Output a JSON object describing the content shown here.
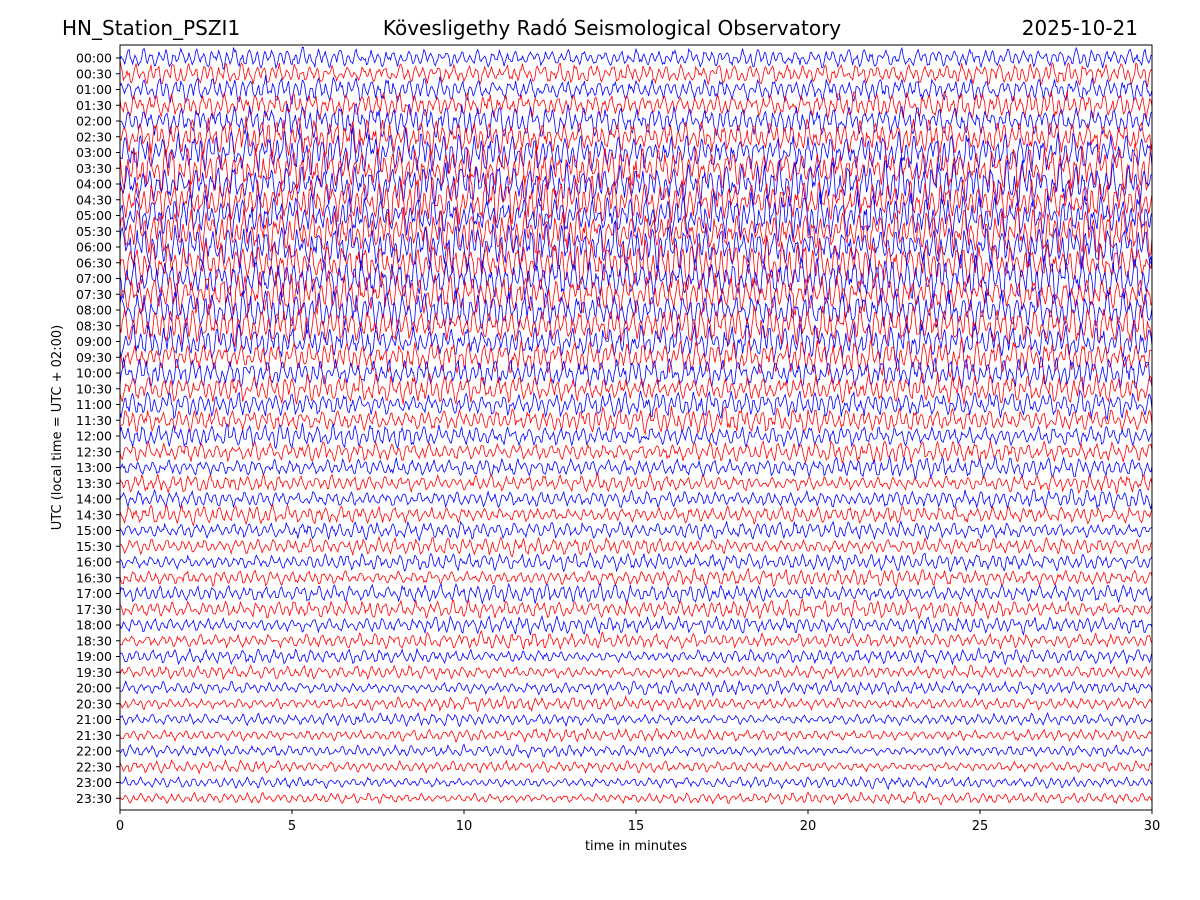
{
  "header": {
    "station": "HN_Station_PSZI1",
    "observatory": "Kövesligethy Radó Seismological Observatory",
    "date": "2025-10-21"
  },
  "colors": {
    "trace_a": "#0000ff",
    "trace_b": "#ff0000",
    "frame": "#000000",
    "background": "#ffffff"
  },
  "chart_data": {
    "type": "line",
    "title": "Kövesligethy Radó Seismological Observatory",
    "xlabel": "time in minutes",
    "ylabel": "UTC (local time = UTC + 02:00)",
    "xlim": [
      0,
      30
    ],
    "x_ticks": [
      0,
      5,
      10,
      15,
      20,
      25,
      30
    ],
    "grid": false,
    "legend": "none",
    "trace_color_order": [
      "blue",
      "red"
    ],
    "rows": [
      {
        "label": "00:00",
        "color": "blue",
        "amplitude": 0.45
      },
      {
        "label": "00:30",
        "color": "red",
        "amplitude": 0.5
      },
      {
        "label": "01:00",
        "color": "blue",
        "amplitude": 0.55
      },
      {
        "label": "01:30",
        "color": "red",
        "amplitude": 0.6
      },
      {
        "label": "02:00",
        "color": "blue",
        "amplitude": 0.7
      },
      {
        "label": "02:30",
        "color": "red",
        "amplitude": 0.8
      },
      {
        "label": "03:00",
        "color": "blue",
        "amplitude": 0.9
      },
      {
        "label": "03:30",
        "color": "red",
        "amplitude": 1.0
      },
      {
        "label": "04:00",
        "color": "blue",
        "amplitude": 1.0
      },
      {
        "label": "04:30",
        "color": "red",
        "amplitude": 1.0
      },
      {
        "label": "05:00",
        "color": "blue",
        "amplitude": 1.0
      },
      {
        "label": "05:30",
        "color": "red",
        "amplitude": 1.0
      },
      {
        "label": "06:00",
        "color": "blue",
        "amplitude": 1.0
      },
      {
        "label": "06:30",
        "color": "red",
        "amplitude": 1.0
      },
      {
        "label": "07:00",
        "color": "blue",
        "amplitude": 0.95
      },
      {
        "label": "07:30",
        "color": "red",
        "amplitude": 0.9
      },
      {
        "label": "08:00",
        "color": "blue",
        "amplitude": 0.9
      },
      {
        "label": "08:30",
        "color": "red",
        "amplitude": 0.85
      },
      {
        "label": "09:00",
        "color": "blue",
        "amplitude": 0.8
      },
      {
        "label": "09:30",
        "color": "red",
        "amplitude": 0.75
      },
      {
        "label": "10:00",
        "color": "blue",
        "amplitude": 0.7
      },
      {
        "label": "10:30",
        "color": "red",
        "amplitude": 0.65
      },
      {
        "label": "11:00",
        "color": "blue",
        "amplitude": 0.6
      },
      {
        "label": "11:30",
        "color": "red",
        "amplitude": 0.55
      },
      {
        "label": "12:00",
        "color": "blue",
        "amplitude": 0.5
      },
      {
        "label": "12:30",
        "color": "red",
        "amplitude": 0.45
      },
      {
        "label": "13:00",
        "color": "blue",
        "amplitude": 0.42
      },
      {
        "label": "13:30",
        "color": "red",
        "amplitude": 0.4
      },
      {
        "label": "14:00",
        "color": "blue",
        "amplitude": 0.4
      },
      {
        "label": "14:30",
        "color": "red",
        "amplitude": 0.4
      },
      {
        "label": "15:00",
        "color": "blue",
        "amplitude": 0.38
      },
      {
        "label": "15:30",
        "color": "red",
        "amplitude": 0.38
      },
      {
        "label": "16:00",
        "color": "blue",
        "amplitude": 0.38
      },
      {
        "label": "16:30",
        "color": "red",
        "amplitude": 0.36
      },
      {
        "label": "17:00",
        "color": "blue",
        "amplitude": 0.4
      },
      {
        "label": "17:30",
        "color": "red",
        "amplitude": 0.4
      },
      {
        "label": "18:00",
        "color": "blue",
        "amplitude": 0.38
      },
      {
        "label": "18:30",
        "color": "red",
        "amplitude": 0.35
      },
      {
        "label": "19:00",
        "color": "blue",
        "amplitude": 0.33
      },
      {
        "label": "19:30",
        "color": "red",
        "amplitude": 0.3
      },
      {
        "label": "20:00",
        "color": "blue",
        "amplitude": 0.3
      },
      {
        "label": "20:30",
        "color": "red",
        "amplitude": 0.28
      },
      {
        "label": "21:00",
        "color": "blue",
        "amplitude": 0.27
      },
      {
        "label": "21:30",
        "color": "red",
        "amplitude": 0.27
      },
      {
        "label": "22:00",
        "color": "blue",
        "amplitude": 0.26
      },
      {
        "label": "22:30",
        "color": "red",
        "amplitude": 0.26
      },
      {
        "label": "23:00",
        "color": "blue",
        "amplitude": 0.25
      },
      {
        "label": "23:30",
        "color": "red",
        "amplitude": 0.25
      }
    ]
  }
}
